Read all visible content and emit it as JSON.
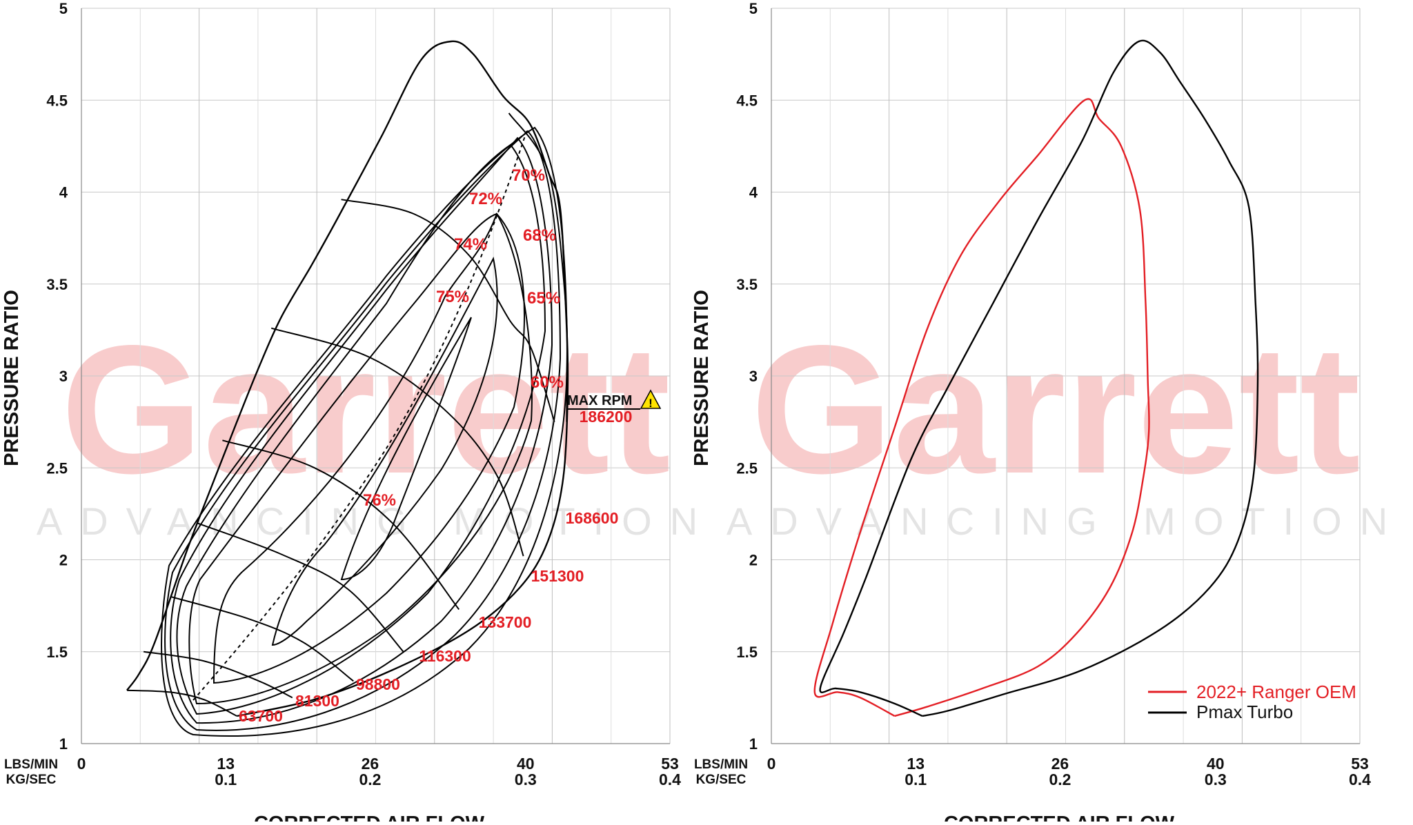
{
  "watermark": {
    "brand": "Garrett",
    "tagline": "ADVANCING MOTION",
    "color": "#f7c4c4"
  },
  "chart_data": [
    {
      "type": "line",
      "title": "",
      "ylabel": "PRESSURE RATIO",
      "xlabel": "CORRECTED AIR FLOW",
      "xunit_labels": [
        "LBS/MIN",
        "KG/SEC"
      ],
      "xlim": [
        0,
        53
      ],
      "ylim": [
        1,
        5
      ],
      "grid": true,
      "x_ticks": [
        {
          "lbs": "0",
          "kg": ""
        },
        {
          "lbs": "13",
          "kg": "0.1"
        },
        {
          "lbs": "26",
          "kg": "0.2"
        },
        {
          "lbs": "40",
          "kg": "0.3"
        },
        {
          "lbs": "53",
          "kg": "0.4"
        }
      ],
      "y_ticks": [
        "1",
        "1.5",
        "2",
        "2.5",
        "3",
        "3.5",
        "4",
        "4.5",
        "5"
      ],
      "map_boundary": [
        [
          4.1,
          1.29
        ],
        [
          5.2,
          1.38
        ],
        [
          6.6,
          1.55
        ],
        [
          9.5,
          2.05
        ],
        [
          11.6,
          2.38
        ],
        [
          14,
          2.75
        ],
        [
          16,
          3.05
        ],
        [
          18,
          3.32
        ],
        [
          20.7,
          3.6
        ],
        [
          23,
          3.85
        ],
        [
          27,
          4.3
        ],
        [
          30.6,
          4.72
        ],
        [
          33.3,
          4.82
        ],
        [
          35.3,
          4.75
        ],
        [
          38,
          4.52
        ],
        [
          40.4,
          4.37
        ],
        [
          42.1,
          4.1
        ],
        [
          43.1,
          3.92
        ],
        [
          43.6,
          3.4
        ],
        [
          43.8,
          2.95
        ],
        [
          43.4,
          2.45
        ],
        [
          42,
          2.1
        ],
        [
          39.5,
          1.85
        ],
        [
          35,
          1.62
        ],
        [
          28,
          1.4
        ],
        [
          21,
          1.24
        ],
        [
          14,
          1.15
        ]
      ],
      "speed_lines": [
        {
          "label": "63700",
          "points": [
            [
              4.1,
              1.29
            ],
            [
              8,
              1.28
            ],
            [
              11,
              1.24
            ],
            [
              14,
              1.15
            ]
          ]
        },
        {
          "label": "81300",
          "points": [
            [
              5.6,
              1.5
            ],
            [
              11,
              1.45
            ],
            [
              16,
              1.34
            ],
            [
              19,
              1.25
            ]
          ]
        },
        {
          "label": "98800",
          "points": [
            [
              8,
              1.8
            ],
            [
              15,
              1.68
            ],
            [
              20,
              1.55
            ],
            [
              24.5,
              1.34
            ]
          ]
        },
        {
          "label": "116300",
          "points": [
            [
              10.4,
              2.2
            ],
            [
              18,
              2.03
            ],
            [
              24,
              1.84
            ],
            [
              29,
              1.5
            ]
          ]
        },
        {
          "label": "133700",
          "points": [
            [
              12.7,
              2.65
            ],
            [
              21,
              2.5
            ],
            [
              28,
              2.2
            ],
            [
              34,
              1.73
            ]
          ]
        },
        {
          "label": "151300",
          "points": [
            [
              17.1,
              3.26
            ],
            [
              26,
              3.1
            ],
            [
              33,
              2.8
            ],
            [
              37.5,
              2.45
            ],
            [
              39.8,
              2.02
            ]
          ]
        },
        {
          "label": "168600",
          "points": [
            [
              23.4,
              3.96
            ],
            [
              30,
              3.88
            ],
            [
              35,
              3.65
            ],
            [
              38.6,
              3.3
            ],
            [
              40.5,
              3.15
            ],
            [
              42.6,
              2.75
            ]
          ]
        },
        {
          "label": "186200",
          "points": [
            [
              38.5,
              4.43
            ],
            [
              42.1,
              4.1
            ],
            [
              43.6,
              3.4
            ],
            [
              43.7,
              2.95
            ],
            [
              43.7,
              2.75
            ]
          ]
        }
      ],
      "efficiency_labels": [
        "76%",
        "75%",
        "74%",
        "72%",
        "70%",
        "68%",
        "65%",
        "60%"
      ],
      "max_rpm_label": "MAX RPM",
      "max_rpm_warning": "!",
      "warning_color": "#ffe400",
      "label_color": "#e31e24"
    },
    {
      "type": "line",
      "title": "",
      "ylabel": "PRESSURE RATIO",
      "xlabel": "CORRECTED AIR FLOW",
      "xunit_labels": [
        "LBS/MIN",
        "KG/SEC"
      ],
      "xlim": [
        0,
        53
      ],
      "ylim": [
        1,
        5
      ],
      "grid": true,
      "legend": "bottom-right",
      "x_ticks": [
        {
          "lbs": "0",
          "kg": ""
        },
        {
          "lbs": "13",
          "kg": "0.1"
        },
        {
          "lbs": "26",
          "kg": "0.2"
        },
        {
          "lbs": "40",
          "kg": "0.3"
        },
        {
          "lbs": "53",
          "kg": "0.4"
        }
      ],
      "y_ticks": [
        "1",
        "1.5",
        "2",
        "2.5",
        "3",
        "3.5",
        "4",
        "4.5",
        "5"
      ],
      "series": [
        {
          "name": "2022+ Ranger OEM",
          "color": "#e31e24",
          "points": [
            [
              11.1,
              1.15
            ],
            [
              8,
              1.25
            ],
            [
              6,
              1.28
            ],
            [
              3.9,
              1.28
            ],
            [
              5.5,
              1.65
            ],
            [
              8,
              2.15
            ],
            [
              11,
              2.7
            ],
            [
              14,
              3.25
            ],
            [
              17,
              3.65
            ],
            [
              20.5,
              3.95
            ],
            [
              24,
              4.2
            ],
            [
              28.2,
              4.5
            ],
            [
              29.5,
              4.4
            ],
            [
              31.5,
              4.25
            ],
            [
              33.2,
              3.9
            ],
            [
              33.7,
              3.4
            ],
            [
              33.9,
              2.98
            ],
            [
              34,
              2.7
            ],
            [
              33.5,
              2.45
            ],
            [
              32.5,
              2.15
            ],
            [
              30.5,
              1.85
            ],
            [
              27.5,
              1.6
            ],
            [
              24,
              1.42
            ],
            [
              19,
              1.3
            ],
            [
              14,
              1.2
            ],
            [
              11.1,
              1.15
            ]
          ]
        },
        {
          "name": "Pmax Turbo",
          "color": "#000000",
          "points": [
            [
              13.6,
              1.15
            ],
            [
              11,
              1.22
            ],
            [
              8,
              1.28
            ],
            [
              5.8,
              1.3
            ],
            [
              4.4,
              1.3
            ],
            [
              6.5,
              1.6
            ],
            [
              8.5,
              1.9
            ],
            [
              12.6,
              2.55
            ],
            [
              16,
              2.95
            ],
            [
              20,
              3.4
            ],
            [
              24,
              3.85
            ],
            [
              28,
              4.28
            ],
            [
              30.8,
              4.65
            ],
            [
              33.1,
              4.82
            ],
            [
              35,
              4.76
            ],
            [
              36.8,
              4.6
            ],
            [
              39,
              4.4
            ],
            [
              41.2,
              4.17
            ],
            [
              43,
              3.92
            ],
            [
              43.6,
              3.4
            ],
            [
              43.8,
              2.95
            ],
            [
              43.4,
              2.45
            ],
            [
              42,
              2.1
            ],
            [
              39.5,
              1.85
            ],
            [
              35,
              1.62
            ],
            [
              28,
              1.4
            ],
            [
              21,
              1.27
            ],
            [
              16,
              1.18
            ],
            [
              13.6,
              1.15
            ]
          ]
        }
      ]
    }
  ]
}
